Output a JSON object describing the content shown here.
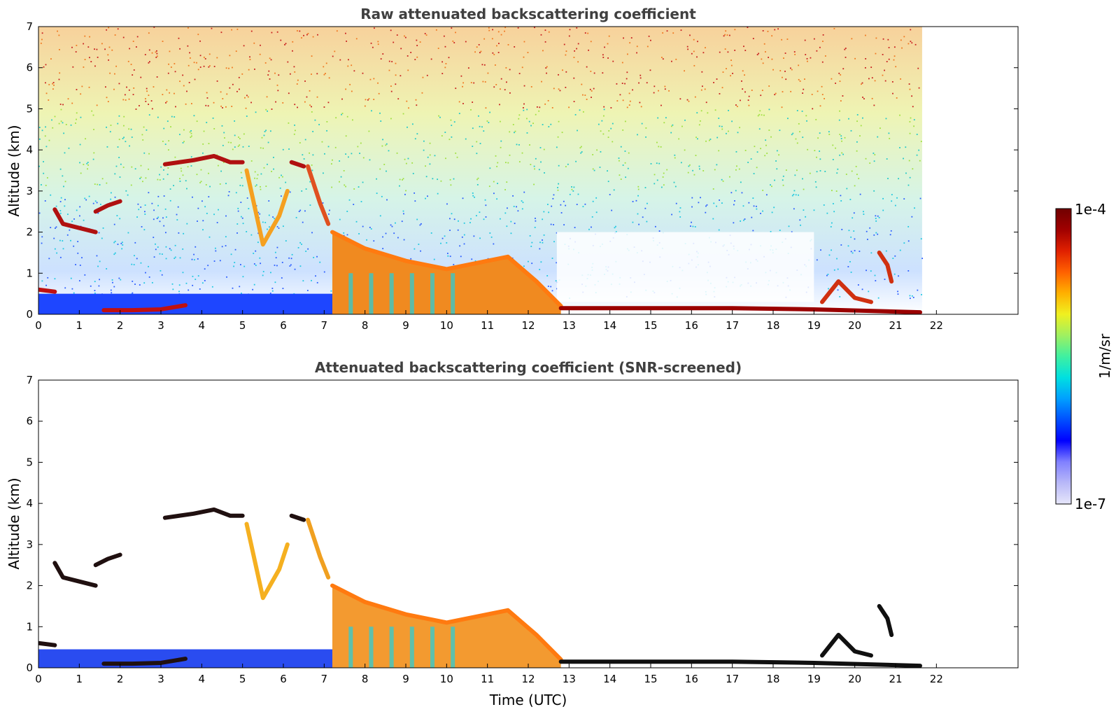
{
  "chart_data": [
    {
      "type": "heatmap",
      "title": "Raw attenuated backscattering coefficient",
      "ylabel": "Altitude (km)",
      "xlabel": "",
      "xlim": [
        0,
        24
      ],
      "ylim": [
        0,
        7
      ],
      "xticks": [
        "0",
        "1",
        "2",
        "3",
        "4",
        "5",
        "6",
        "7",
        "8",
        "9",
        "10",
        "11",
        "12",
        "13",
        "14",
        "15",
        "16",
        "17",
        "18",
        "19",
        "20",
        "21",
        "22"
      ],
      "yticks": [
        "0",
        "1",
        "2",
        "3",
        "4",
        "5",
        "6",
        "7"
      ],
      "data_end_time": 21.65,
      "surface_layer": {
        "color": "#1e46ff",
        "top_km": 0.5
      },
      "features": [
        {
          "kind": "cloud",
          "points": [
            [
              0.4,
              2.55
            ],
            [
              0.6,
              2.2
            ],
            [
              1.0,
              2.1
            ],
            [
              1.4,
              2.0
            ]
          ],
          "color": "#b01010"
        },
        {
          "kind": "cloud",
          "points": [
            [
              1.4,
              2.5
            ],
            [
              1.7,
              2.65
            ],
            [
              2.0,
              2.75
            ]
          ],
          "color": "#b01010"
        },
        {
          "kind": "cloud",
          "points": [
            [
              3.1,
              3.65
            ],
            [
              3.8,
              3.75
            ],
            [
              4.3,
              3.85
            ],
            [
              4.7,
              3.7
            ],
            [
              5.0,
              3.7
            ]
          ],
          "color": "#b01010"
        },
        {
          "kind": "cloud",
          "points": [
            [
              6.2,
              3.7
            ],
            [
              6.5,
              3.6
            ]
          ],
          "color": "#b01010"
        },
        {
          "kind": "cloud",
          "points": [
            [
              0.0,
              0.6
            ],
            [
              0.4,
              0.55
            ]
          ],
          "color": "#c01010"
        },
        {
          "kind": "cloud",
          "points": [
            [
              1.6,
              0.1
            ],
            [
              2.3,
              0.1
            ],
            [
              3.0,
              0.12
            ],
            [
              3.6,
              0.22
            ]
          ],
          "color": "#c01010"
        },
        {
          "kind": "cloud",
          "points": [
            [
              6.6,
              3.6
            ],
            [
              6.9,
              2.7
            ],
            [
              7.1,
              2.2
            ]
          ],
          "color": "#e05020"
        },
        {
          "kind": "cloud",
          "points": [
            [
              5.1,
              3.5
            ],
            [
              5.5,
              1.7
            ],
            [
              5.9,
              2.4
            ],
            [
              6.1,
              3.0
            ]
          ],
          "color": "#f5a020"
        },
        {
          "kind": "cloud",
          "points": [
            [
              7.2,
              2.0
            ],
            [
              8.0,
              1.6
            ],
            [
              9.0,
              1.3
            ],
            [
              10.0,
              1.1
            ],
            [
              11.5,
              1.4
            ],
            [
              12.2,
              0.8
            ],
            [
              12.8,
              0.2
            ]
          ],
          "color": "#ff7a10"
        },
        {
          "kind": "cloud",
          "points": [
            [
              12.8,
              0.15
            ],
            [
              15.0,
              0.15
            ],
            [
              17.0,
              0.15
            ],
            [
              19.0,
              0.12
            ],
            [
              21.6,
              0.05
            ]
          ],
          "color": "#9a0000"
        },
        {
          "kind": "cloud",
          "points": [
            [
              19.2,
              0.3
            ],
            [
              19.6,
              0.8
            ],
            [
              20.0,
              0.4
            ],
            [
              20.4,
              0.3
            ]
          ],
          "color": "#d03010"
        },
        {
          "kind": "cloud",
          "points": [
            [
              20.6,
              1.5
            ],
            [
              20.8,
              1.2
            ],
            [
              20.9,
              0.8
            ]
          ],
          "color": "#d03010"
        }
      ]
    },
    {
      "type": "heatmap",
      "title": "Attenuated backscattering coefficient (SNR-screened)",
      "ylabel": "Altitude (km)",
      "xlabel": "Time (UTC)",
      "xlim": [
        0,
        24
      ],
      "ylim": [
        0,
        7
      ],
      "xticks": [
        "0",
        "1",
        "2",
        "3",
        "4",
        "5",
        "6",
        "7",
        "8",
        "9",
        "10",
        "11",
        "12",
        "13",
        "14",
        "15",
        "16",
        "17",
        "18",
        "19",
        "20",
        "21",
        "22"
      ],
      "yticks": [
        "0",
        "1",
        "2",
        "3",
        "4",
        "5",
        "6",
        "7"
      ],
      "data_end_time": 21.65,
      "surface_layer": {
        "color": "#2a4cf0",
        "top_km": 0.45
      },
      "features": [
        {
          "kind": "cloud",
          "points": [
            [
              0.4,
              2.55
            ],
            [
              0.6,
              2.2
            ],
            [
              1.0,
              2.1
            ],
            [
              1.4,
              2.0
            ]
          ],
          "color": "#201010"
        },
        {
          "kind": "cloud",
          "points": [
            [
              1.4,
              2.5
            ],
            [
              1.7,
              2.65
            ],
            [
              2.0,
              2.75
            ]
          ],
          "color": "#201010"
        },
        {
          "kind": "cloud",
          "points": [
            [
              3.1,
              3.65
            ],
            [
              3.8,
              3.75
            ],
            [
              4.3,
              3.85
            ],
            [
              4.7,
              3.7
            ],
            [
              5.0,
              3.7
            ]
          ],
          "color": "#201010"
        },
        {
          "kind": "cloud",
          "points": [
            [
              6.2,
              3.7
            ],
            [
              6.5,
              3.6
            ]
          ],
          "color": "#201010"
        },
        {
          "kind": "cloud",
          "points": [
            [
              0.0,
              0.6
            ],
            [
              0.4,
              0.55
            ]
          ],
          "color": "#201010"
        },
        {
          "kind": "cloud",
          "points": [
            [
              1.6,
              0.1
            ],
            [
              2.3,
              0.1
            ],
            [
              3.0,
              0.12
            ],
            [
              3.6,
              0.22
            ]
          ],
          "color": "#201010"
        },
        {
          "kind": "cloud",
          "points": [
            [
              6.6,
              3.6
            ],
            [
              6.9,
              2.7
            ],
            [
              7.1,
              2.2
            ]
          ],
          "color": "#f0a020"
        },
        {
          "kind": "cloud",
          "points": [
            [
              5.1,
              3.5
            ],
            [
              5.5,
              1.7
            ],
            [
              5.9,
              2.4
            ],
            [
              6.1,
              3.0
            ]
          ],
          "color": "#f5b020"
        },
        {
          "kind": "cloud",
          "points": [
            [
              7.2,
              2.0
            ],
            [
              8.0,
              1.6
            ],
            [
              9.0,
              1.3
            ],
            [
              10.0,
              1.1
            ],
            [
              11.5,
              1.4
            ],
            [
              12.2,
              0.8
            ],
            [
              12.8,
              0.2
            ]
          ],
          "color": "#ff7a10"
        },
        {
          "kind": "cloud",
          "points": [
            [
              12.8,
              0.15
            ],
            [
              15.0,
              0.15
            ],
            [
              17.0,
              0.15
            ],
            [
              19.0,
              0.12
            ],
            [
              21.6,
              0.05
            ]
          ],
          "color": "#101010"
        },
        {
          "kind": "cloud",
          "points": [
            [
              19.2,
              0.3
            ],
            [
              19.6,
              0.8
            ],
            [
              20.0,
              0.4
            ],
            [
              20.4,
              0.3
            ]
          ],
          "color": "#101010"
        },
        {
          "kind": "cloud",
          "points": [
            [
              20.6,
              1.5
            ],
            [
              20.8,
              1.2
            ],
            [
              20.9,
              0.8
            ]
          ],
          "color": "#101010"
        }
      ]
    }
  ],
  "colorbar": {
    "label": "1/m/sr",
    "max_label": "1e-4",
    "min_label": "1e-7",
    "scale": "log",
    "colors": [
      "#e6e6fa",
      "#b8b8f8",
      "#8080ff",
      "#0000ff",
      "#0050ff",
      "#00a0ff",
      "#00e0e0",
      "#40f0a0",
      "#a0f060",
      "#f0f020",
      "#ffb000",
      "#ff6000",
      "#e02000",
      "#a00000",
      "#700000"
    ]
  }
}
